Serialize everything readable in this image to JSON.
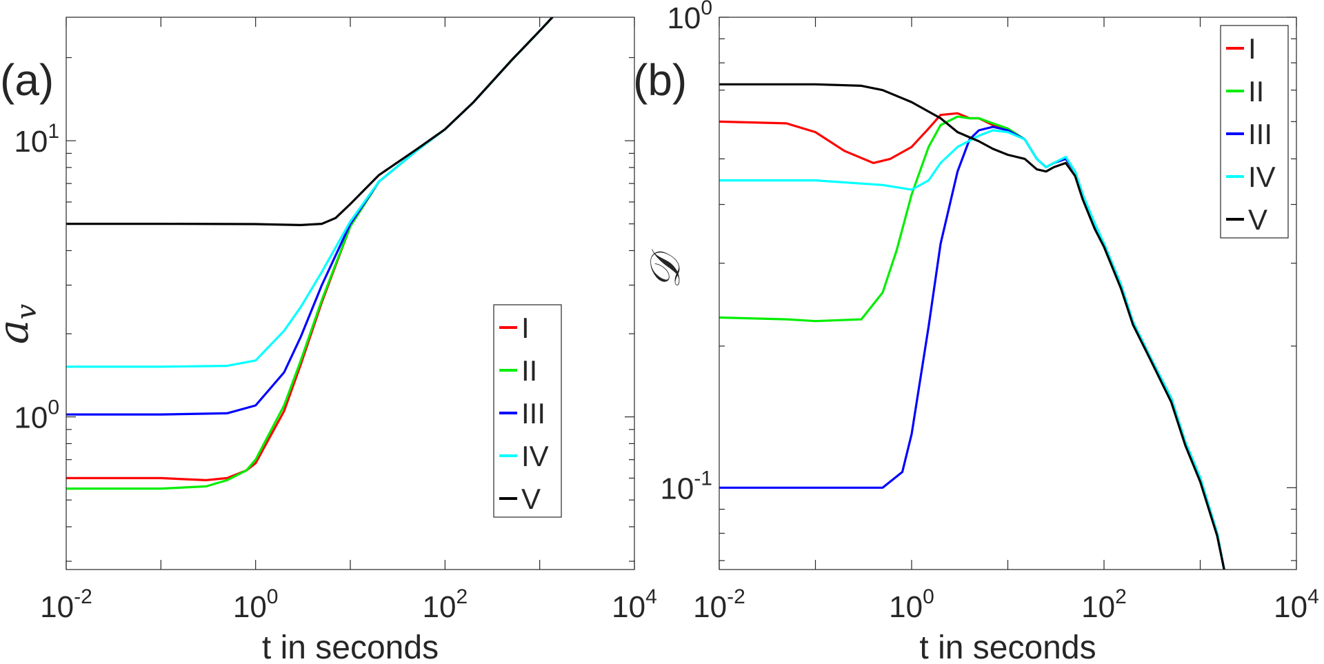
{
  "chart_data": [
    {
      "type": "line",
      "panel_label": "(a)",
      "xlabel": "t in seconds",
      "ylabel": "a_v",
      "ylabel_display": "𝑎",
      "ylabel_sub": "v",
      "xscale": "log",
      "yscale": "log",
      "xlim": [
        0.01,
        10000
      ],
      "ylim": [
        0.28,
        28
      ],
      "xticks": [
        {
          "value": 0.01,
          "base": "10",
          "exp": "-2"
        },
        {
          "value": 1,
          "base": "10",
          "exp": "0"
        },
        {
          "value": 100,
          "base": "10",
          "exp": "2"
        },
        {
          "value": 10000,
          "base": "10",
          "exp": "4"
        }
      ],
      "yticks": [
        {
          "value": 1,
          "base": "10",
          "exp": "0"
        },
        {
          "value": 10,
          "base": "10",
          "exp": "1"
        }
      ],
      "legend_position": "center-right",
      "series": [
        {
          "name": "I",
          "color": "#ff0000",
          "points": [
            [
              0.01,
              0.6
            ],
            [
              0.1,
              0.6
            ],
            [
              0.3,
              0.59
            ],
            [
              0.5,
              0.6
            ],
            [
              0.8,
              0.64
            ],
            [
              1,
              0.68
            ],
            [
              2,
              1.05
            ],
            [
              3,
              1.55
            ],
            [
              5,
              2.6
            ],
            [
              10,
              4.9
            ],
            [
              20,
              7.1
            ],
            [
              50,
              9.2
            ],
            [
              100,
              11
            ],
            [
              200,
              13.8
            ],
            [
              500,
              19.5
            ],
            [
              1000,
              25
            ],
            [
              1500,
              29
            ]
          ]
        },
        {
          "name": "II",
          "color": "#00ee00",
          "points": [
            [
              0.01,
              0.55
            ],
            [
              0.1,
              0.55
            ],
            [
              0.3,
              0.56
            ],
            [
              0.5,
              0.59
            ],
            [
              0.8,
              0.64
            ],
            [
              1,
              0.7
            ],
            [
              2,
              1.1
            ],
            [
              3,
              1.6
            ],
            [
              5,
              2.65
            ],
            [
              10,
              4.9
            ],
            [
              20,
              7.1
            ],
            [
              50,
              9.2
            ],
            [
              100,
              11
            ],
            [
              200,
              13.8
            ],
            [
              500,
              19.5
            ],
            [
              1000,
              25
            ],
            [
              1500,
              29
            ]
          ]
        },
        {
          "name": "III",
          "color": "#0000ff",
          "points": [
            [
              0.01,
              1.02
            ],
            [
              0.1,
              1.02
            ],
            [
              0.5,
              1.03
            ],
            [
              1,
              1.1
            ],
            [
              2,
              1.45
            ],
            [
              3,
              1.95
            ],
            [
              5,
              3.0
            ],
            [
              10,
              5.0
            ],
            [
              20,
              7.1
            ],
            [
              50,
              9.2
            ],
            [
              100,
              11
            ],
            [
              200,
              13.8
            ],
            [
              500,
              19.5
            ],
            [
              1000,
              25
            ],
            [
              1500,
              29
            ]
          ]
        },
        {
          "name": "IV",
          "color": "#00ffff",
          "points": [
            [
              0.01,
              1.52
            ],
            [
              0.1,
              1.52
            ],
            [
              0.5,
              1.53
            ],
            [
              1,
              1.6
            ],
            [
              2,
              2.05
            ],
            [
              3,
              2.5
            ],
            [
              5,
              3.35
            ],
            [
              10,
              5.1
            ],
            [
              20,
              7.1
            ],
            [
              50,
              9.2
            ],
            [
              100,
              11
            ],
            [
              200,
              13.8
            ],
            [
              500,
              19.5
            ],
            [
              1000,
              25
            ],
            [
              1500,
              29
            ]
          ]
        },
        {
          "name": "V",
          "color": "#000000",
          "points": [
            [
              0.01,
              5.0
            ],
            [
              0.1,
              5.0
            ],
            [
              1,
              4.99
            ],
            [
              3,
              4.95
            ],
            [
              5,
              5.0
            ],
            [
              7,
              5.25
            ],
            [
              10,
              5.9
            ],
            [
              20,
              7.5
            ],
            [
              50,
              9.3
            ],
            [
              100,
              11
            ],
            [
              200,
              13.8
            ],
            [
              500,
              19.5
            ],
            [
              1000,
              25
            ],
            [
              1500,
              29
            ]
          ]
        }
      ]
    },
    {
      "type": "line",
      "panel_label": "(b)",
      "xlabel": "t in seconds",
      "ylabel": "𝒟",
      "xscale": "log",
      "yscale": "log",
      "xlim": [
        0.01,
        10000
      ],
      "ylim": [
        0.067,
        1
      ],
      "xticks": [
        {
          "value": 0.01,
          "base": "10",
          "exp": "-2"
        },
        {
          "value": 1,
          "base": "10",
          "exp": "0"
        },
        {
          "value": 100,
          "base": "10",
          "exp": "2"
        },
        {
          "value": 10000,
          "base": "10",
          "exp": "4"
        }
      ],
      "yticks": [
        {
          "value": 0.1,
          "base": "10",
          "exp": "-1"
        },
        {
          "value": 1,
          "base": "10",
          "exp": "0"
        }
      ],
      "legend_position": "top-right",
      "series": [
        {
          "name": "I",
          "color": "#ff0000",
          "points": [
            [
              0.01,
              0.6
            ],
            [
              0.05,
              0.595
            ],
            [
              0.1,
              0.57
            ],
            [
              0.2,
              0.52
            ],
            [
              0.4,
              0.49
            ],
            [
              0.6,
              0.5
            ],
            [
              1,
              0.53
            ],
            [
              1.5,
              0.58
            ],
            [
              2,
              0.62
            ],
            [
              3,
              0.625
            ],
            [
              4,
              0.61
            ],
            [
              5,
              0.61
            ],
            [
              7,
              0.59
            ],
            [
              10,
              0.575
            ],
            [
              15,
              0.55
            ],
            [
              20,
              0.5
            ],
            [
              25,
              0.48
            ],
            [
              30,
              0.49
            ],
            [
              40,
              0.5
            ],
            [
              50,
              0.47
            ],
            [
              60,
              0.42
            ],
            [
              80,
              0.36
            ],
            [
              100,
              0.33
            ],
            [
              150,
              0.27
            ],
            [
              200,
              0.225
            ],
            [
              300,
              0.19
            ],
            [
              500,
              0.155
            ],
            [
              700,
              0.125
            ],
            [
              1000,
              0.105
            ],
            [
              1500,
              0.08
            ],
            [
              1800,
              0.066
            ]
          ]
        },
        {
          "name": "II",
          "color": "#00ee00",
          "points": [
            [
              0.01,
              0.23
            ],
            [
              0.05,
              0.228
            ],
            [
              0.1,
              0.226
            ],
            [
              0.3,
              0.228
            ],
            [
              0.5,
              0.26
            ],
            [
              0.7,
              0.32
            ],
            [
              1,
              0.42
            ],
            [
              1.5,
              0.53
            ],
            [
              2,
              0.59
            ],
            [
              3,
              0.615
            ],
            [
              4,
              0.61
            ],
            [
              5,
              0.61
            ],
            [
              7,
              0.595
            ],
            [
              10,
              0.58
            ],
            [
              15,
              0.55
            ],
            [
              20,
              0.5
            ],
            [
              25,
              0.48
            ],
            [
              30,
              0.49
            ],
            [
              40,
              0.5
            ],
            [
              50,
              0.47
            ],
            [
              60,
              0.42
            ],
            [
              80,
              0.36
            ],
            [
              100,
              0.33
            ],
            [
              150,
              0.27
            ],
            [
              200,
              0.225
            ],
            [
              300,
              0.19
            ],
            [
              500,
              0.155
            ],
            [
              700,
              0.125
            ],
            [
              1000,
              0.105
            ],
            [
              1500,
              0.08
            ],
            [
              1800,
              0.066
            ]
          ]
        },
        {
          "name": "III",
          "color": "#0000ff",
          "points": [
            [
              0.01,
              0.1
            ],
            [
              0.1,
              0.1
            ],
            [
              0.5,
              0.1
            ],
            [
              0.8,
              0.108
            ],
            [
              1,
              0.13
            ],
            [
              1.5,
              0.22
            ],
            [
              2,
              0.33
            ],
            [
              3,
              0.47
            ],
            [
              4,
              0.55
            ],
            [
              5,
              0.575
            ],
            [
              7,
              0.585
            ],
            [
              10,
              0.575
            ],
            [
              15,
              0.55
            ],
            [
              20,
              0.5
            ],
            [
              25,
              0.48
            ],
            [
              30,
              0.49
            ],
            [
              40,
              0.5
            ],
            [
              50,
              0.47
            ],
            [
              60,
              0.42
            ],
            [
              80,
              0.36
            ],
            [
              100,
              0.33
            ],
            [
              150,
              0.27
            ],
            [
              200,
              0.225
            ],
            [
              300,
              0.19
            ],
            [
              500,
              0.155
            ],
            [
              700,
              0.125
            ],
            [
              1000,
              0.105
            ],
            [
              1500,
              0.08
            ],
            [
              1800,
              0.066
            ]
          ]
        },
        {
          "name": "IV",
          "color": "#00ffff",
          "points": [
            [
              0.01,
              0.45
            ],
            [
              0.1,
              0.45
            ],
            [
              0.5,
              0.44
            ],
            [
              1,
              0.43
            ],
            [
              1.5,
              0.45
            ],
            [
              2,
              0.49
            ],
            [
              3,
              0.53
            ],
            [
              5,
              0.56
            ],
            [
              7,
              0.575
            ],
            [
              10,
              0.57
            ],
            [
              15,
              0.55
            ],
            [
              20,
              0.5
            ],
            [
              25,
              0.48
            ],
            [
              30,
              0.49
            ],
            [
              40,
              0.505
            ],
            [
              50,
              0.47
            ],
            [
              60,
              0.42
            ],
            [
              80,
              0.365
            ],
            [
              100,
              0.33
            ],
            [
              150,
              0.27
            ],
            [
              200,
              0.225
            ],
            [
              300,
              0.19
            ],
            [
              500,
              0.155
            ],
            [
              700,
              0.125
            ],
            [
              1000,
              0.105
            ],
            [
              1500,
              0.08
            ],
            [
              1800,
              0.066
            ]
          ]
        },
        {
          "name": "V",
          "color": "#000000",
          "points": [
            [
              0.01,
              0.72
            ],
            [
              0.1,
              0.72
            ],
            [
              0.3,
              0.715
            ],
            [
              0.5,
              0.7
            ],
            [
              1,
              0.66
            ],
            [
              2,
              0.61
            ],
            [
              3,
              0.57
            ],
            [
              5,
              0.545
            ],
            [
              7,
              0.525
            ],
            [
              10,
              0.51
            ],
            [
              15,
              0.5
            ],
            [
              20,
              0.475
            ],
            [
              25,
              0.47
            ],
            [
              30,
              0.48
            ],
            [
              40,
              0.49
            ],
            [
              50,
              0.46
            ],
            [
              60,
              0.41
            ],
            [
              80,
              0.355
            ],
            [
              100,
              0.325
            ],
            [
              150,
              0.265
            ],
            [
              200,
              0.222
            ],
            [
              300,
              0.188
            ],
            [
              500,
              0.152
            ],
            [
              700,
              0.123
            ],
            [
              1000,
              0.103
            ],
            [
              1500,
              0.079
            ],
            [
              1800,
              0.066
            ]
          ]
        }
      ]
    }
  ]
}
